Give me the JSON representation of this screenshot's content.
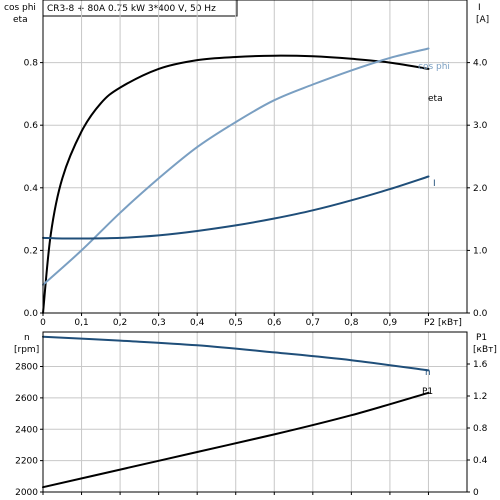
{
  "title": "CR3-8 + 80A   0.75 kW   3*400 V, 50 Hz",
  "colors": {
    "eta": "#000000",
    "cos_phi": "#7a9fc2",
    "I": "#1f4e79",
    "n": "#1f4e79",
    "P1": "#000000",
    "grid": "#c8c8c8"
  },
  "chart_data": [
    {
      "type": "line",
      "panel": "top",
      "xlabel": "P2 [кВт]",
      "x_ticks": [
        "0",
        "0,1",
        "0,2",
        "0,3",
        "0,4",
        "0,5",
        "0,6",
        "0,7",
        "0,8",
        "0,9"
      ],
      "xlim": [
        0,
        1.1
      ],
      "y_left": {
        "label_lines": [
          "cos phi",
          "eta"
        ],
        "ylim": [
          0,
          1.0
        ],
        "ticks": [
          "0.0",
          "0.2",
          "0.4",
          "0.6",
          "0.8"
        ],
        "tick_values": [
          0,
          0.2,
          0.4,
          0.6,
          0.8
        ]
      },
      "y_right": {
        "label_lines": [
          "I",
          "[A]"
        ],
        "ylim": [
          0,
          5.0
        ],
        "ticks": [
          "0.0",
          "1.0",
          "2.0",
          "3.0",
          "4.0"
        ],
        "tick_values": [
          0,
          1,
          2,
          3,
          4
        ]
      },
      "grid": true,
      "series": [
        {
          "name": "eta",
          "axis": "left",
          "x": [
            0,
            0.02,
            0.05,
            0.1,
            0.15,
            0.2,
            0.3,
            0.4,
            0.5,
            0.6,
            0.7,
            0.8,
            0.9,
            1.0
          ],
          "y": [
            0,
            0.25,
            0.43,
            0.58,
            0.67,
            0.72,
            0.78,
            0.808,
            0.818,
            0.822,
            0.82,
            0.812,
            0.8,
            0.78
          ]
        },
        {
          "name": "cos phi",
          "axis": "left",
          "x": [
            0,
            0.1,
            0.2,
            0.3,
            0.4,
            0.5,
            0.6,
            0.7,
            0.8,
            0.9,
            1.0
          ],
          "y": [
            0.09,
            0.2,
            0.32,
            0.43,
            0.53,
            0.61,
            0.68,
            0.73,
            0.775,
            0.815,
            0.845
          ]
        },
        {
          "name": "I",
          "axis": "right",
          "x": [
            0,
            0.05,
            0.1,
            0.2,
            0.3,
            0.4,
            0.5,
            0.6,
            0.7,
            0.8,
            0.9,
            1.0
          ],
          "y": [
            1.2,
            1.19,
            1.19,
            1.2,
            1.24,
            1.31,
            1.4,
            1.51,
            1.64,
            1.8,
            1.98,
            2.18
          ]
        }
      ]
    },
    {
      "type": "line",
      "panel": "bottom",
      "xlim": [
        0,
        1.1
      ],
      "y_left": {
        "label_lines": [
          "n",
          "[rpm]"
        ],
        "ylim": [
          2000,
          3020
        ],
        "ticks": [
          "2000",
          "2200",
          "2400",
          "2600",
          "2800"
        ],
        "tick_values": [
          2000,
          2200,
          2400,
          2600,
          2800
        ]
      },
      "y_right": {
        "label_lines": [
          "P1",
          "[кВт]"
        ],
        "ylim": [
          0,
          2.0
        ],
        "ticks": [
          "0",
          "0.4",
          "0.8",
          "1.2",
          "1.6"
        ],
        "tick_values": [
          0,
          0.4,
          0.8,
          1.2,
          1.6
        ]
      },
      "grid": true,
      "series": [
        {
          "name": "n",
          "axis": "left",
          "x": [
            0,
            0.2,
            0.4,
            0.6,
            0.8,
            1.0
          ],
          "y": [
            2990,
            2965,
            2935,
            2890,
            2840,
            2775
          ]
        },
        {
          "name": "P1",
          "axis": "right",
          "x": [
            0,
            0.2,
            0.4,
            0.6,
            0.8,
            1.0
          ],
          "y": [
            0.06,
            0.28,
            0.5,
            0.72,
            0.96,
            1.24
          ]
        }
      ]
    }
  ]
}
